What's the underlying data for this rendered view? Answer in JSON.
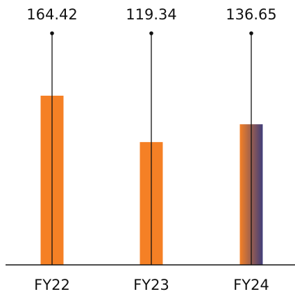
{
  "chart_data": {
    "type": "bar",
    "categories": [
      "FY22",
      "FY23",
      "FY24"
    ],
    "values": [
      164.42,
      119.34,
      136.65
    ],
    "value_labels": [
      "164.42",
      "119.34",
      "136.65"
    ],
    "bar_colors": [
      "#f58025",
      "#f58025",
      "gradient"
    ],
    "gradient_colors": [
      "#f58025",
      "#3f3d7a"
    ],
    "xlabel": "",
    "ylabel": "",
    "grid": false,
    "legend": "none"
  }
}
